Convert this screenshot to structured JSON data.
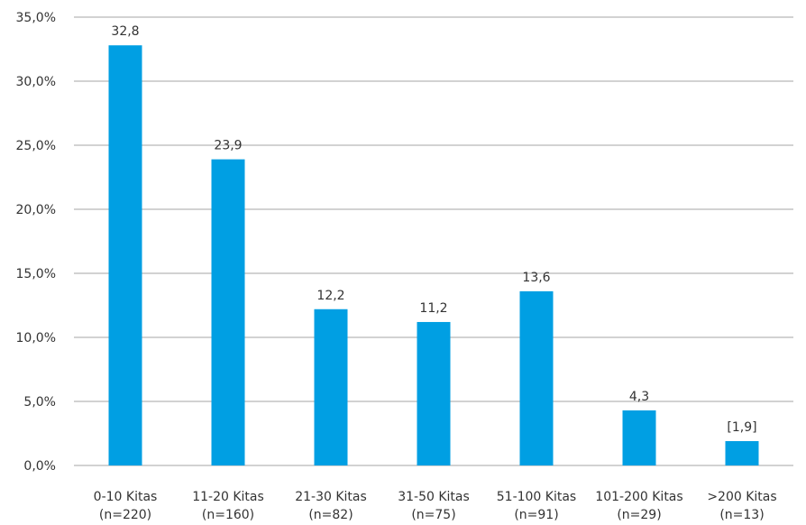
{
  "chart_data": {
    "type": "bar",
    "categories": [
      [
        "0-10 Kitas",
        "(n=220)"
      ],
      [
        "11-20 Kitas",
        "(n=160)"
      ],
      [
        "21-30 Kitas",
        "(n=82)"
      ],
      [
        "31-50 Kitas",
        "(n=75)"
      ],
      [
        "51-100 Kitas",
        "(n=91)"
      ],
      [
        "101-200 Kitas",
        "(n=29)"
      ],
      [
        ">200 Kitas",
        "(n=13)"
      ]
    ],
    "values": [
      32.8,
      23.9,
      12.2,
      11.2,
      13.6,
      4.3,
      1.9
    ],
    "data_labels": [
      "32,8",
      "23,9",
      "12,2",
      "11,2",
      "13,6",
      "4,3",
      "[1,9]"
    ],
    "yticks": [
      "0,0%",
      "5,0%",
      "10,0%",
      "15,0%",
      "20,0%",
      "25,0%",
      "30,0%",
      "35,0%"
    ],
    "ylim": [
      0,
      35
    ],
    "grid": true,
    "bar_color": "#009fe3",
    "grid_color": "#a6a6a6"
  }
}
